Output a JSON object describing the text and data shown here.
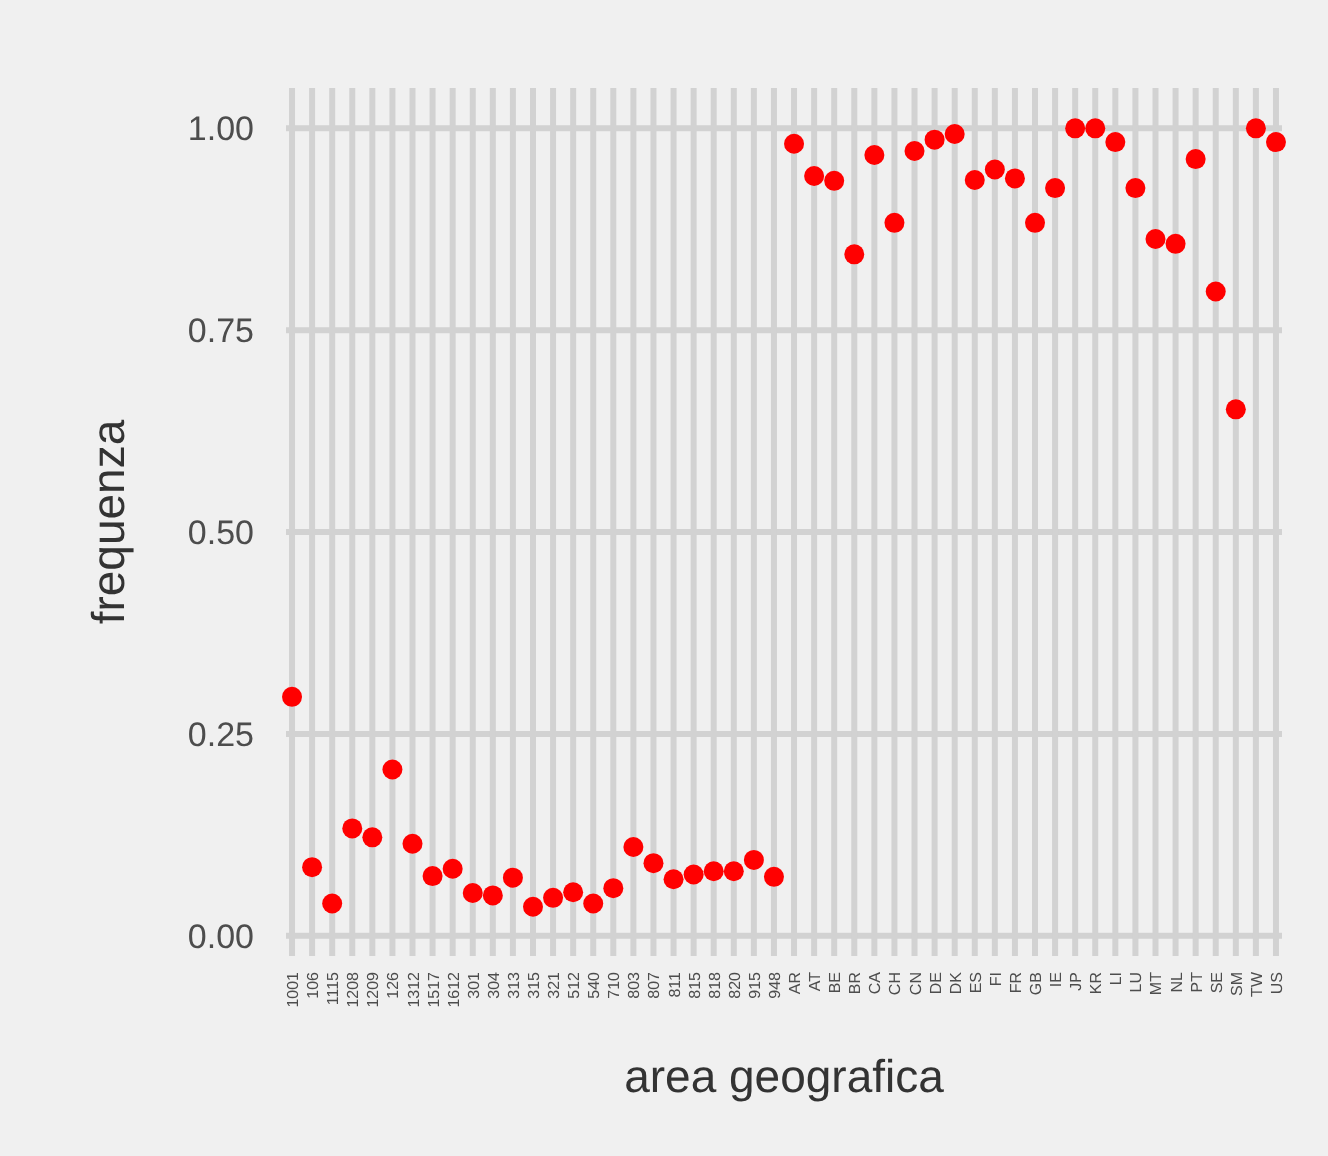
{
  "chart_data": {
    "type": "scatter",
    "xlabel": "area geografica",
    "ylabel": "frequenza",
    "categories": [
      "1001",
      "106",
      "1115",
      "1208",
      "1209",
      "126",
      "1312",
      "1517",
      "1612",
      "301",
      "304",
      "313",
      "315",
      "321",
      "512",
      "540",
      "710",
      "803",
      "807",
      "811",
      "815",
      "818",
      "820",
      "915",
      "948",
      "AR",
      "AT",
      "BE",
      "BR",
      "CA",
      "CH",
      "CN",
      "DE",
      "DK",
      "ES",
      "FI",
      "FR",
      "GB",
      "IE",
      "JP",
      "KR",
      "LI",
      "LU",
      "MT",
      "NL",
      "PT",
      "SE",
      "SM",
      "TW",
      "US"
    ],
    "series": [
      {
        "color": "#ff0000",
        "values": [
          0.296,
          0.085,
          0.04,
          0.133,
          0.122,
          0.206,
          0.114,
          0.074,
          0.083,
          0.053,
          0.05,
          0.072,
          0.036,
          0.047,
          0.054,
          0.04,
          0.059,
          0.11,
          0.09,
          0.07,
          0.076,
          0.08,
          0.08,
          0.094,
          0.073,
          0.981,
          0.941,
          0.935,
          0.844,
          0.967,
          0.883,
          0.972,
          0.986,
          0.993,
          0.936,
          0.949,
          0.938,
          0.883,
          0.926,
          1.0,
          1.0,
          0.983,
          0.926,
          0.863,
          0.857,
          0.962,
          0.798,
          0.652,
          1.0,
          0.983
        ]
      }
    ],
    "ylim": [
      -0.025,
      1.05
    ],
    "yticks": [
      {
        "value": 0,
        "label": "0.00"
      },
      {
        "value": 0.25,
        "label": "0.25"
      },
      {
        "value": 0.5,
        "label": "0.50"
      },
      {
        "value": 0.75,
        "label": "0.75"
      },
      {
        "value": 1,
        "label": "1.00"
      }
    ],
    "grid": true,
    "marker": "circle"
  }
}
